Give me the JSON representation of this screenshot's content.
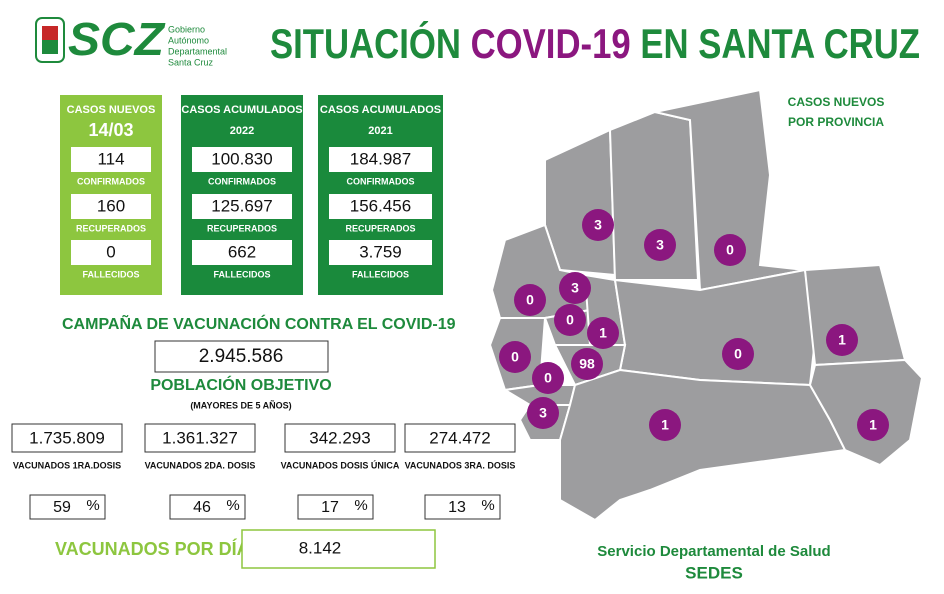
{
  "header": {
    "logo": "SCZ",
    "org_lines": [
      "Gobierno",
      "Autónomo",
      "Departamental",
      "Santa Cruz"
    ],
    "title_parts": [
      "SITUACIÓN ",
      "COVID-19",
      " EN SANTA CRUZ"
    ]
  },
  "cards": [
    {
      "heading": "CASOS NUEVOS",
      "sub": "14/03",
      "items": [
        {
          "value": "114",
          "label": "CONFIRMADOS"
        },
        {
          "value": "160",
          "label": "RECUPERADOS"
        },
        {
          "value": "0",
          "label": "FALLECIDOS"
        }
      ]
    },
    {
      "heading": "CASOS ACUMULADOS",
      "sub": "2022",
      "items": [
        {
          "value": "100.830",
          "label": "CONFIRMADOS"
        },
        {
          "value": "125.697",
          "label": "RECUPERADOS"
        },
        {
          "value": "662",
          "label": "FALLECIDOS"
        }
      ]
    },
    {
      "heading": "CASOS ACUMULADOS",
      "sub": "2021",
      "items": [
        {
          "value": "184.987",
          "label": "CONFIRMADOS"
        },
        {
          "value": "156.456",
          "label": "RECUPERADOS"
        },
        {
          "value": "3.759",
          "label": "FALLECIDOS"
        }
      ]
    }
  ],
  "vaccination": {
    "title": "CAMPAÑA DE VACUNACIÓN CONTRA EL COVID-19",
    "target": "2.945.586",
    "target_label": "POBLACIÓN OBJETIVO",
    "target_note": "(MAYORES DE 5 AÑOS)",
    "doses": [
      {
        "value": "1.735.809",
        "label": "VACUNADOS 1RA.DOSIS",
        "percent": "59",
        "percent_sign": "%"
      },
      {
        "value": "1.361.327",
        "label": "VACUNADOS 2DA. DOSIS",
        "percent": "46",
        "percent_sign": "%"
      },
      {
        "value": "342.293",
        "label": "VACUNADOS DOSIS ÚNICA",
        "percent": "17",
        "percent_sign": "%"
      },
      {
        "value": "274.472",
        "label": "VACUNADOS 3RA. DOSIS",
        "percent": "13",
        "percent_sign": "%"
      }
    ],
    "per_day_label": "VACUNADOS POR DÍA",
    "per_day": "8.142"
  },
  "map": {
    "title_lines": [
      "CASOS NUEVOS",
      "POR PROVINCIA"
    ],
    "provinces": [
      "3",
      "3",
      "0",
      "3",
      "0",
      "0",
      "1",
      "0",
      "1",
      "0",
      "98",
      "0",
      "3",
      "1",
      "1"
    ]
  },
  "footer": {
    "line1": "Servicio Departamental de Salud",
    "line2": "SEDES"
  }
}
